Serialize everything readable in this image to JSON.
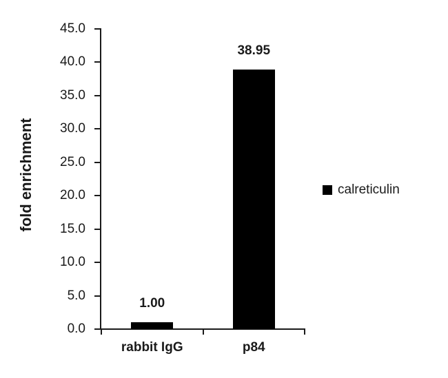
{
  "chart_data": {
    "type": "bar",
    "categories": [
      "rabbit IgG",
      "p84"
    ],
    "values": [
      1.0,
      38.95
    ],
    "value_labels": [
      "1.00",
      "38.95"
    ],
    "title": "",
    "xlabel": "",
    "ylabel": "fold enrichment",
    "ylim": [
      0,
      45
    ],
    "ytick_step": 5,
    "ytick_labels": [
      "0.0",
      "5.0",
      "10.0",
      "15.0",
      "20.0",
      "25.0",
      "30.0",
      "35.0",
      "40.0",
      "45.0"
    ],
    "grid": false,
    "legend_position": "right",
    "legend": [
      {
        "label": "calreticulin",
        "color": "#000000"
      }
    ],
    "bar_color": "#000000",
    "axis_color": "#1a1a1a",
    "text_color": "#1a1a1a",
    "background_color": "#ffffff"
  }
}
